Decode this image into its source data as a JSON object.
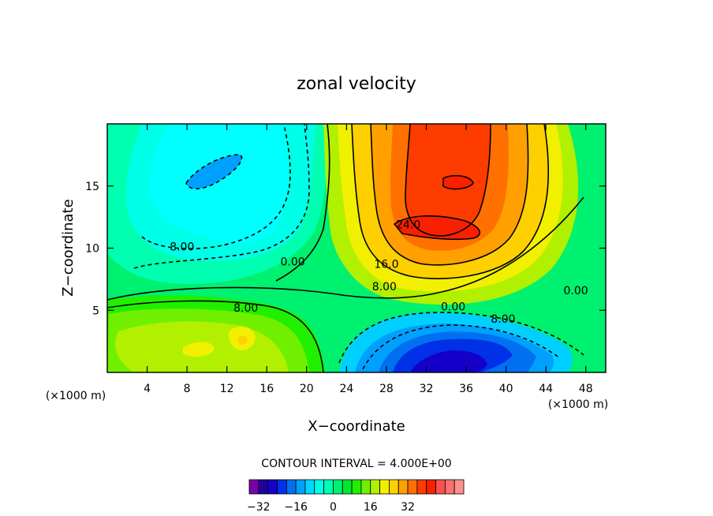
{
  "chart_data": {
    "type": "heatmap",
    "title": "zonal velocity",
    "xlabel": "X−coordinate",
    "ylabel": "Z−coordinate",
    "x_unit": "(×1000 m)",
    "y_unit": "(×1000 m)",
    "xlim": [
      0,
      50
    ],
    "ylim": [
      0,
      20
    ],
    "x_ticks": [
      4,
      8,
      12,
      16,
      20,
      24,
      28,
      32,
      36,
      40,
      44,
      48
    ],
    "y_ticks": [
      5,
      10,
      15
    ],
    "x_tick_labels": [
      "4",
      "8",
      "12",
      "16",
      "20",
      "24",
      "28",
      "32",
      "36",
      "40",
      "44",
      "48"
    ],
    "y_tick_labels": [
      "5",
      "10",
      "15"
    ],
    "contour_interval_text": "CONTOUR INTERVAL = 4.000E+00",
    "contour_interval": 4,
    "contour_labels": [
      {
        "text": "8.00",
        "x": 7.5,
        "z": 9.8
      },
      {
        "text": "0.00",
        "x": 18.6,
        "z": 8.6
      },
      {
        "text": "8.00",
        "x": 13.9,
        "z": 4.9
      },
      {
        "text": "16.0",
        "x": 28.0,
        "z": 8.4
      },
      {
        "text": "8.00",
        "x": 27.8,
        "z": 6.6
      },
      {
        "text": "24.0",
        "x": 30.2,
        "z": 11.6
      },
      {
        "text": "0.00",
        "x": 34.7,
        "z": 5.0
      },
      {
        "text": "8.00",
        "x": 39.7,
        "z": 4.0
      },
      {
        "text": "0.00",
        "x": 47.0,
        "z": 6.3
      }
    ],
    "colorbar": {
      "levels": [
        -36,
        -32,
        -28,
        -24,
        -20,
        -16,
        -12,
        -8,
        -4,
        0,
        4,
        8,
        12,
        16,
        20,
        24,
        28,
        32,
        36,
        40
      ],
      "tick_labels": [
        "−32",
        "−16",
        "0",
        "16",
        "32"
      ],
      "tick_values": [
        -32,
        -16,
        0,
        16,
        32
      ],
      "colors": [
        "#7a00a8",
        "#1e00a0",
        "#1400c8",
        "#0030e8",
        "#0070f0",
        "#00a0ff",
        "#00d8ff",
        "#00ffe8",
        "#00ffb0",
        "#00f070",
        "#00e830",
        "#20f000",
        "#70f000",
        "#b0f000",
        "#f0f000",
        "#ffd000",
        "#ffa000",
        "#ff7000",
        "#ff3c00",
        "#f82000"
      ],
      "extra_colors": [
        "#ff5050",
        "#ff7070",
        "#ff9090"
      ]
    },
    "field_features": [
      {
        "name": "upper-left negative core",
        "x": 10.5,
        "z": 16.8,
        "value": -12
      },
      {
        "name": "lower-right negative core",
        "x": 34,
        "z": 1.5,
        "value": -28
      },
      {
        "name": "upper-right positive core",
        "x": 34,
        "z": 12,
        "value": 30
      },
      {
        "name": "lower-left positive core",
        "x": 13,
        "z": 2.6,
        "value": 18
      }
    ]
  }
}
